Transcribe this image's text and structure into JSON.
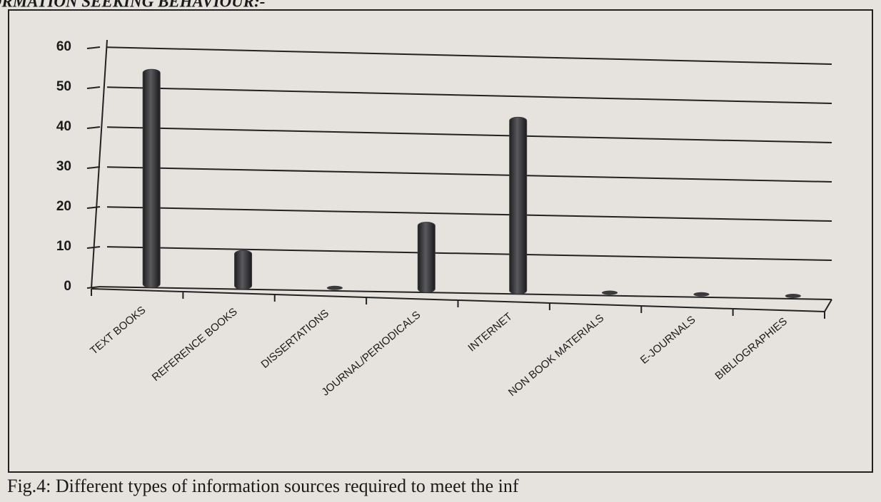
{
  "chart_data": {
    "type": "bar",
    "heading": "INFORMATION SEEKING BEHAVIOUR:-",
    "caption": "Fig.4: Different types of information sources required to meet the inf",
    "categories": [
      "TEXT BOOKS",
      "REFERENCE BOOKS",
      "DISSERTATIONS",
      "JOURNAL/PERIODICALS",
      "INTERNET",
      "NON BOOK MATERIALS",
      "E-JOURNALS",
      "BIBLIOGRAPHIES"
    ],
    "values": [
      54,
      9,
      0,
      17,
      44,
      0,
      0,
      0
    ],
    "color": "#3a3a3c",
    "ylim": [
      0,
      60
    ],
    "yticks": [
      0,
      10,
      20,
      30,
      40,
      50,
      60
    ],
    "grid": true
  }
}
